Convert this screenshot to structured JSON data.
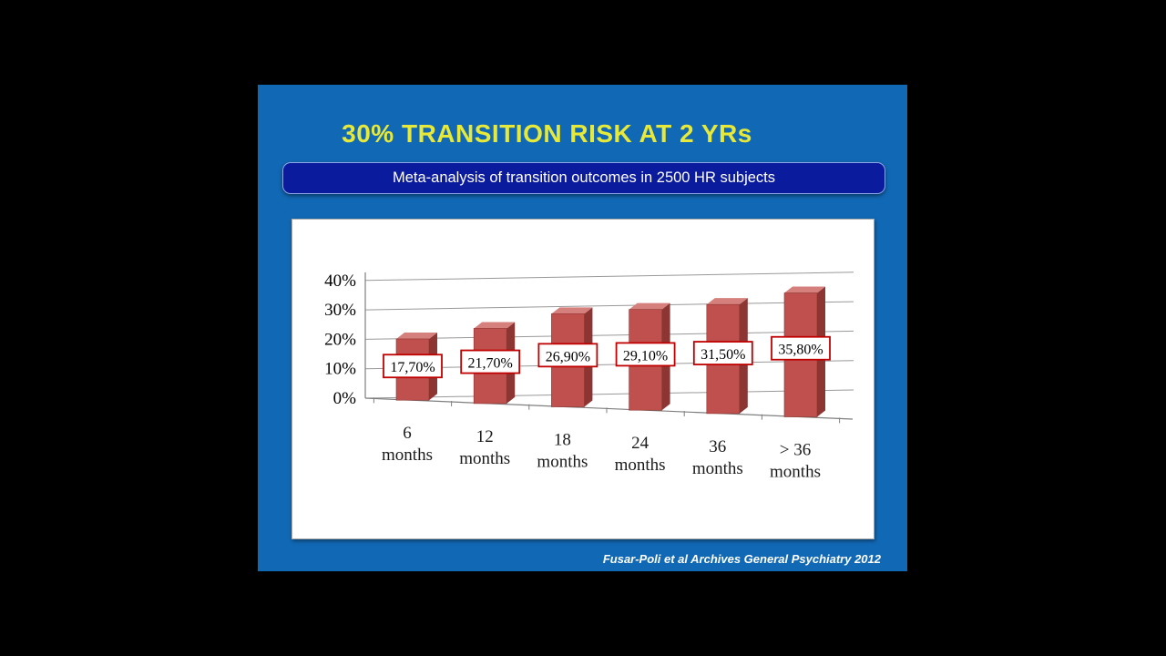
{
  "slide": {
    "title": "30% TRANSITION RISK AT 2 YRs",
    "banner": "Meta-analysis of transition outcomes in 2500 HR subjects",
    "citation": "Fusar-Poli et al Archives General Psychiatry 2012"
  },
  "chart_data": {
    "type": "bar",
    "style": "3d-perspective",
    "title": "",
    "xlabel": "",
    "ylabel": "",
    "categories": [
      "6 months",
      "12 months",
      "18 months",
      "24 months",
      "36 months",
      "> 36 months"
    ],
    "category_lines": [
      [
        "6",
        "months"
      ],
      [
        "12",
        "months"
      ],
      [
        "18",
        "months"
      ],
      [
        "24",
        "months"
      ],
      [
        "36",
        "months"
      ],
      [
        "> 36",
        "months"
      ]
    ],
    "values": [
      17.7,
      21.7,
      26.9,
      29.1,
      31.5,
      35.8
    ],
    "data_labels": [
      "17,70%",
      "21,70%",
      "26,90%",
      "29,10%",
      "31,50%",
      "35,80%"
    ],
    "yticks": [
      0,
      10,
      20,
      30,
      40
    ],
    "ytick_labels": [
      "0%",
      "10%",
      "20%",
      "30%",
      "40%"
    ],
    "ylim": [
      0,
      40
    ],
    "grid": true,
    "legend": false,
    "bar_color": "#c0504d",
    "bar_side_color": "#8c3532",
    "bar_top_color": "#d5807d",
    "label_border_color": "#c00000",
    "grid_color": "#999999",
    "axis_color": "#7f7f7f"
  }
}
